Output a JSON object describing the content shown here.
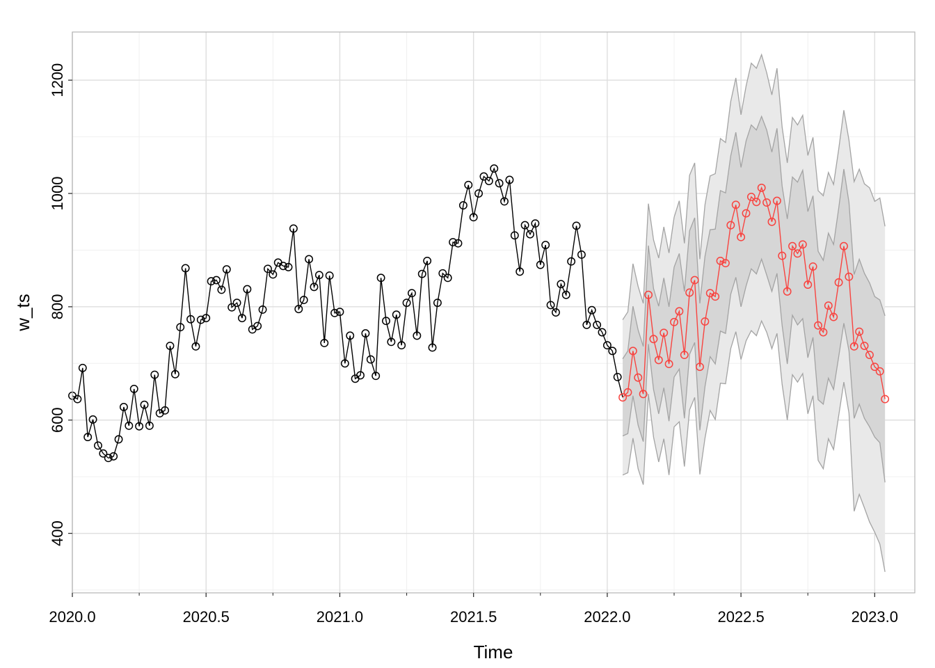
{
  "chart_data": {
    "type": "line",
    "xlabel": "Time",
    "ylabel": "w_ts",
    "xlim": [
      2020.0,
      2023.15
    ],
    "ylim": [
      295,
      1285
    ],
    "x_ticks": [
      2020.0,
      2020.5,
      2021.0,
      2021.5,
      2022.0,
      2022.5,
      2023.0
    ],
    "x_tick_labels": [
      "2020.0",
      "2020.5",
      "2021.0",
      "2021.5",
      "2022.0",
      "2022.5",
      "2023.0"
    ],
    "y_ticks": [
      400,
      600,
      800,
      1000,
      1200
    ],
    "y_tick_labels": [
      "400",
      "600",
      "800",
      "1000",
      "1200"
    ],
    "grid": true,
    "observed": {
      "start": 2020.0,
      "step": 0.019231,
      "color": "#000000",
      "values": [
        643,
        637,
        692,
        570,
        601,
        555,
        541,
        533,
        536,
        566,
        623,
        590,
        655,
        589,
        627,
        590,
        680,
        612,
        617,
        731,
        681,
        764,
        868,
        778,
        730,
        777,
        780,
        845,
        847,
        830,
        866,
        799,
        807,
        780,
        831,
        760,
        766,
        795,
        867,
        857,
        878,
        872,
        870,
        938,
        796,
        812,
        884,
        835,
        856,
        736,
        855,
        789,
        791,
        700,
        749,
        673,
        679,
        753,
        707,
        678,
        851,
        775,
        738,
        786,
        732,
        807,
        824,
        749,
        858,
        881,
        728,
        807,
        859,
        851,
        914,
        912,
        979,
        1015,
        958,
        1000,
        1030,
        1022,
        1044,
        1018,
        986,
        1024,
        926,
        862,
        944,
        928,
        947,
        874,
        909,
        803,
        790,
        840,
        821,
        880,
        943,
        892,
        768,
        794,
        768,
        755,
        732,
        722,
        676
      ]
    },
    "forecast": {
      "start": 2022.0577,
      "step": 0.019231,
      "color": "#f8433f",
      "band_colors": {
        "outer": "#e9e9e9",
        "inner": "#d6d6d6",
        "edge": "#a3a3a3"
      },
      "mean": [
        640,
        649,
        722,
        675,
        646,
        821,
        743,
        706,
        754,
        699,
        773,
        792,
        715,
        825,
        847,
        694,
        774,
        824,
        818,
        881,
        877,
        944,
        980,
        923,
        965,
        994,
        985,
        1010,
        984,
        950,
        987,
        890,
        827,
        907,
        894,
        910,
        839,
        871,
        767,
        755,
        802,
        782,
        843,
        907,
        853,
        730,
        756,
        731,
        715,
        694,
        686,
        637
      ],
      "lo80": [
        572,
        576,
        643,
        591,
        562,
        734,
        654,
        611,
        657,
        598,
        676,
        690,
        603,
        716,
        737,
        582,
        659,
        712,
        699,
        757,
        753,
        822,
        852,
        800,
        837,
        867,
        858,
        884,
        856,
        827,
        859,
        767,
        699,
        785,
        768,
        779,
        710,
        746,
        636,
        628,
        674,
        654,
        712,
        771,
        722,
        603,
        628,
        603,
        588,
        570,
        560,
        490
      ],
      "hi80": [
        708,
        722,
        801,
        759,
        730,
        908,
        832,
        801,
        851,
        800,
        870,
        894,
        827,
        934,
        957,
        806,
        889,
        936,
        937,
        1005,
        1001,
        1066,
        1108,
        1046,
        1093,
        1121,
        1112,
        1136,
        1112,
        1073,
        1115,
        1013,
        955,
        1029,
        1020,
        1041,
        968,
        996,
        898,
        882,
        930,
        910,
        974,
        1043,
        984,
        857,
        884,
        859,
        842,
        818,
        812,
        784
      ],
      "lo95": [
        503,
        507,
        568,
        514,
        486,
        646,
        570,
        526,
        567,
        503,
        588,
        597,
        518,
        618,
        640,
        504,
        568,
        617,
        601,
        665,
        664,
        726,
        756,
        707,
        740,
        758,
        749,
        775,
        755,
        726,
        753,
        663,
        600,
        680,
        667,
        682,
        611,
        643,
        529,
        514,
        567,
        548,
        608,
        667,
        612,
        439,
        469,
        445,
        420,
        402,
        381,
        332
      ],
      "hi95": [
        777,
        791,
        876,
        836,
        806,
        982,
        918,
        886,
        941,
        895,
        958,
        987,
        912,
        1032,
        1054,
        884,
        980,
        1031,
        1035,
        1097,
        1090,
        1162,
        1204,
        1139,
        1190,
        1230,
        1221,
        1245,
        1213,
        1174,
        1221,
        1117,
        1054,
        1134,
        1121,
        1138,
        1067,
        1099,
        1005,
        996,
        1037,
        1016,
        1078,
        1147,
        1094,
        1021,
        1043,
        1017,
        1010,
        986,
        992,
        942
      ]
    }
  }
}
